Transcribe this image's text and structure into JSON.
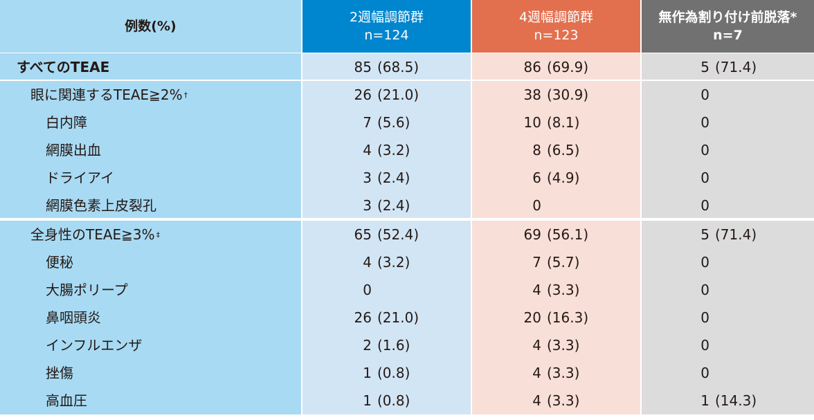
{
  "header": {
    "col0": "例数(%)",
    "col1_line1": "2週幅調節群",
    "col1_line2": "n=124",
    "col2_line1": "4週幅調節群",
    "col2_line2": "n=123",
    "col3_line1": "無作為割り付け前脱落*",
    "col3_line2": "n=7"
  },
  "rows": [
    {
      "label": "すべてのTEAE",
      "mark": "",
      "a_n": "85",
      "a_p": "(68.5)",
      "b_n": "86",
      "b_p": "(69.9)",
      "c_n": "5",
      "c_p": "(71.4)"
    },
    {
      "label": "眼に関連するTEAE≧2%",
      "mark": "†",
      "a_n": "26",
      "a_p": "(21.0)",
      "b_n": "38",
      "b_p": "(30.9)",
      "c_n": "0",
      "c_p": ""
    },
    {
      "label": "白内障",
      "mark": "",
      "a_n": "7",
      "a_p": "(5.6)",
      "b_n": "10",
      "b_p": "(8.1)",
      "c_n": "0",
      "c_p": ""
    },
    {
      "label": "網膜出血",
      "mark": "",
      "a_n": "4",
      "a_p": "(3.2)",
      "b_n": "8",
      "b_p": "(6.5)",
      "c_n": "0",
      "c_p": ""
    },
    {
      "label": "ドライアイ",
      "mark": "",
      "a_n": "3",
      "a_p": "(2.4)",
      "b_n": "6",
      "b_p": "(4.9)",
      "c_n": "0",
      "c_p": ""
    },
    {
      "label": "網膜色素上皮裂孔",
      "mark": "",
      "a_n": "3",
      "a_p": "(2.4)",
      "b_n": "0",
      "b_p": "",
      "c_n": "0",
      "c_p": ""
    },
    {
      "label": "全身性のTEAE≧3%",
      "mark": "‡",
      "a_n": "65",
      "a_p": "(52.4)",
      "b_n": "69",
      "b_p": "(56.1)",
      "c_n": "5",
      "c_p": "(71.4)"
    },
    {
      "label": "便秘",
      "mark": "",
      "a_n": "4",
      "a_p": "(3.2)",
      "b_n": "7",
      "b_p": "(5.7)",
      "c_n": "0",
      "c_p": ""
    },
    {
      "label": "大腸ポリープ",
      "mark": "",
      "a_n": "0",
      "a_p": "",
      "b_n": "4",
      "b_p": "(3.3)",
      "c_n": "0",
      "c_p": ""
    },
    {
      "label": "鼻咽頭炎",
      "mark": "",
      "a_n": "26",
      "a_p": "(21.0)",
      "b_n": "20",
      "b_p": "(16.3)",
      "c_n": "0",
      "c_p": ""
    },
    {
      "label": "インフルエンザ",
      "mark": "",
      "a_n": "2",
      "a_p": "(1.6)",
      "b_n": "4",
      "b_p": "(3.3)",
      "c_n": "0",
      "c_p": ""
    },
    {
      "label": "挫傷",
      "mark": "",
      "a_n": "1",
      "a_p": "(0.8)",
      "b_n": "4",
      "b_p": "(3.3)",
      "c_n": "0",
      "c_p": ""
    },
    {
      "label": "高血圧",
      "mark": "",
      "a_n": "1",
      "a_p": "(0.8)",
      "b_n": "4",
      "b_p": "(3.3)",
      "c_n": "1",
      "c_p": "(14.3)"
    }
  ]
}
